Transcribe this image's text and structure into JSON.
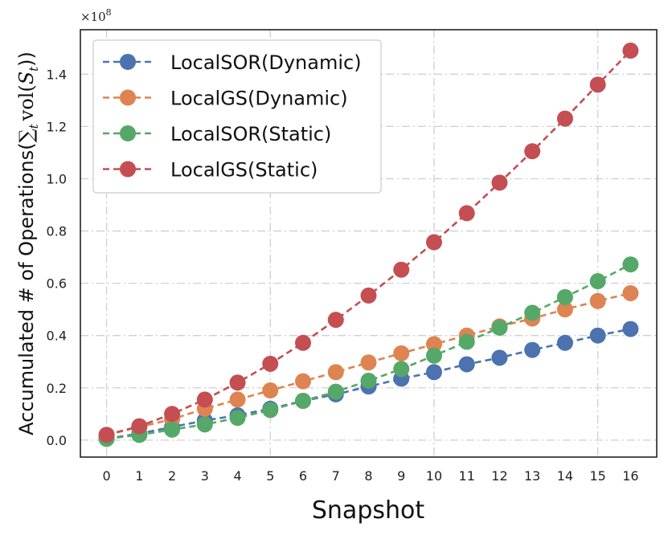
{
  "chart_data": {
    "type": "line",
    "xlabel": "Snapshot",
    "ylabel": "Accumulated # of Operations(∑t vol(St))",
    "ylabel_prefix": "Accumulated # of Operations(",
    "ylabel_sum": "∑",
    "ylabel_sub_t": "t",
    "ylabel_vol": "vol(",
    "ylabel_S": "S",
    "ylabel_sub_t2": "t",
    "ylabel_suffix": "))",
    "y_multiplier": "×10",
    "y_multiplier_exp": "8",
    "ylim": [
      -0.065,
      1.57
    ],
    "xlim": [
      -0.8,
      16.8
    ],
    "x_ticks": [
      0,
      1,
      2,
      3,
      4,
      5,
      6,
      7,
      8,
      9,
      10,
      11,
      12,
      13,
      14,
      15,
      16
    ],
    "y_ticks": [
      0.0,
      0.2,
      0.4,
      0.6,
      0.8,
      1.0,
      1.2,
      1.4
    ],
    "y_tick_labels": [
      "0.0",
      "0.2",
      "0.4",
      "0.6",
      "0.8",
      "1.0",
      "1.2",
      "1.4"
    ],
    "grid": true,
    "legend_position": "top-left",
    "x": [
      0,
      1,
      2,
      3,
      4,
      5,
      6,
      7,
      8,
      9,
      10,
      11,
      12,
      13,
      14,
      15,
      16
    ],
    "series": [
      {
        "name": "LocalSOR(Dynamic)",
        "color": "#4C72B0",
        "values": [
          0.005,
          0.025,
          0.05,
          0.075,
          0.095,
          0.12,
          0.15,
          0.175,
          0.205,
          0.235,
          0.26,
          0.29,
          0.315,
          0.345,
          0.372,
          0.4,
          0.425
        ]
      },
      {
        "name": "LocalGS(Dynamic)",
        "color": "#DD8452",
        "values": [
          0.02,
          0.05,
          0.08,
          0.12,
          0.155,
          0.19,
          0.225,
          0.26,
          0.297,
          0.332,
          0.367,
          0.4,
          0.435,
          0.465,
          0.5,
          0.532,
          0.562
        ]
      },
      {
        "name": "LocalSOR(Static)",
        "color": "#55A868",
        "values": [
          0.005,
          0.02,
          0.04,
          0.06,
          0.085,
          0.115,
          0.15,
          0.185,
          0.227,
          0.272,
          0.323,
          0.376,
          0.43,
          0.487,
          0.547,
          0.608,
          0.672
        ]
      },
      {
        "name": "LocalGS(Static)",
        "color": "#C44E52",
        "values": [
          0.02,
          0.053,
          0.1,
          0.155,
          0.22,
          0.292,
          0.372,
          0.46,
          0.553,
          0.652,
          0.757,
          0.868,
          0.985,
          1.105,
          1.23,
          1.36,
          1.49
        ]
      }
    ]
  }
}
